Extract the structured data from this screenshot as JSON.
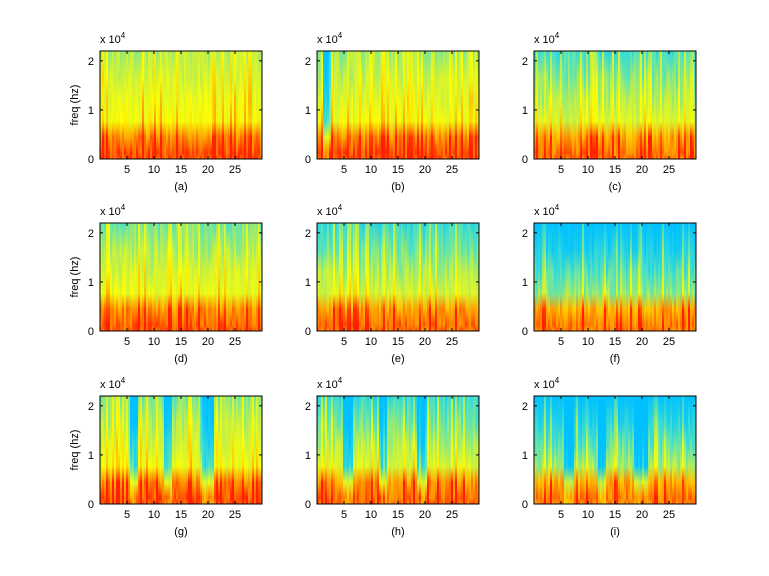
{
  "figure": {
    "background": "#ffffff",
    "colormap": [
      "#00c0ff",
      "#40e0d0",
      "#c8f040",
      "#ffff00",
      "#ffa000",
      "#ff2000"
    ]
  },
  "chart_data": [
    {
      "type": "heatmap",
      "title": "",
      "caption": "(a)",
      "xlabel": "",
      "ylabel": "freq (hz)",
      "y_exponent": "x 10",
      "y_exponent_power": "4",
      "xlim": [
        0,
        30
      ],
      "ylim": [
        0,
        2.2
      ],
      "xticks": [
        5,
        10,
        15,
        20,
        25
      ],
      "yticks": [
        0,
        1,
        2
      ],
      "grid": false
    },
    {
      "type": "heatmap",
      "title": "",
      "caption": "(b)",
      "xlabel": "",
      "ylabel": "",
      "y_exponent": "x 10",
      "y_exponent_power": "4",
      "xlim": [
        0,
        30
      ],
      "ylim": [
        0,
        2.2
      ],
      "xticks": [
        5,
        10,
        15,
        20,
        25
      ],
      "yticks": [
        0,
        1,
        2
      ],
      "grid": false
    },
    {
      "type": "heatmap",
      "title": "",
      "caption": "(c)",
      "xlabel": "",
      "ylabel": "",
      "y_exponent": "x 10",
      "y_exponent_power": "4",
      "xlim": [
        0,
        30
      ],
      "ylim": [
        0,
        2.2
      ],
      "xticks": [
        5,
        10,
        15,
        20,
        25
      ],
      "yticks": [
        0,
        1,
        2
      ],
      "grid": false
    },
    {
      "type": "heatmap",
      "title": "",
      "caption": "(d)",
      "xlabel": "",
      "ylabel": "freq (hz)",
      "y_exponent": "x 10",
      "y_exponent_power": "4",
      "xlim": [
        0,
        30
      ],
      "ylim": [
        0,
        2.2
      ],
      "xticks": [
        5,
        10,
        15,
        20,
        25
      ],
      "yticks": [
        0,
        1,
        2
      ],
      "grid": false
    },
    {
      "type": "heatmap",
      "title": "",
      "caption": "(e)",
      "xlabel": "",
      "ylabel": "",
      "y_exponent": "x 10",
      "y_exponent_power": "4",
      "xlim": [
        0,
        30
      ],
      "ylim": [
        0,
        2.2
      ],
      "xticks": [
        5,
        10,
        15,
        20,
        25
      ],
      "yticks": [
        0,
        1,
        2
      ],
      "grid": false
    },
    {
      "type": "heatmap",
      "title": "",
      "caption": "(f)",
      "xlabel": "",
      "ylabel": "",
      "y_exponent": "x 10",
      "y_exponent_power": "4",
      "xlim": [
        0,
        30
      ],
      "ylim": [
        0,
        2.2
      ],
      "xticks": [
        5,
        10,
        15,
        20,
        25
      ],
      "yticks": [
        0,
        1,
        2
      ],
      "grid": false
    },
    {
      "type": "heatmap",
      "title": "",
      "caption": "(g)",
      "xlabel": "",
      "ylabel": "freq (hz)",
      "y_exponent": "x 10",
      "y_exponent_power": "4",
      "xlim": [
        0,
        30
      ],
      "ylim": [
        0,
        2.2
      ],
      "xticks": [
        5,
        10,
        15,
        20,
        25
      ],
      "yticks": [
        0,
        1,
        2
      ],
      "grid": false
    },
    {
      "type": "heatmap",
      "title": "",
      "caption": "(h)",
      "xlabel": "",
      "ylabel": "",
      "y_exponent": "x 10",
      "y_exponent_power": "4",
      "xlim": [
        0,
        30
      ],
      "ylim": [
        0,
        2.2
      ],
      "xticks": [
        5,
        10,
        15,
        20,
        25
      ],
      "yticks": [
        0,
        1,
        2
      ],
      "grid": false
    },
    {
      "type": "heatmap",
      "title": "",
      "caption": "(i)",
      "xlabel": "",
      "ylabel": "",
      "y_exponent": "x 10",
      "y_exponent_power": "4",
      "xlim": [
        0,
        30
      ],
      "ylim": [
        0,
        2.2
      ],
      "xticks": [
        5,
        10,
        15,
        20,
        25
      ],
      "yticks": [
        0,
        1,
        2
      ],
      "grid": false
    }
  ]
}
